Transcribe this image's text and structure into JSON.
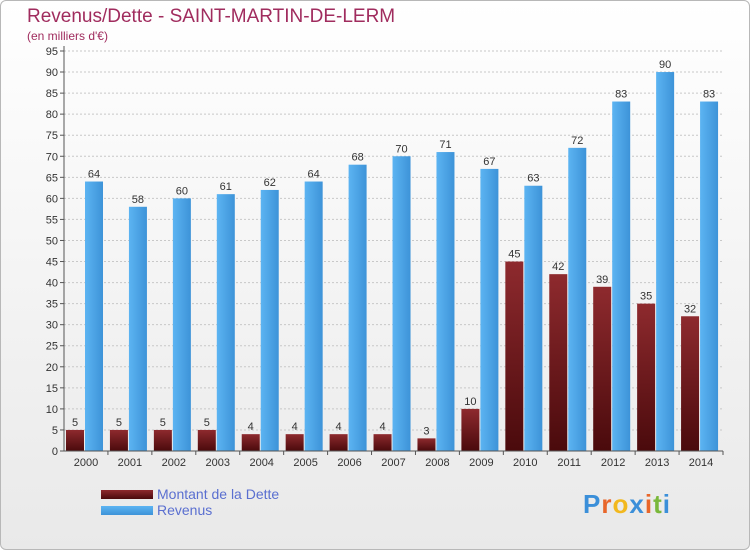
{
  "title": "Revenus/Dette - SAINT-MARTIN-DE-LERM",
  "subtitle": "(en milliers d'€)",
  "logo": "Proxiti",
  "colors": {
    "debt": "#7a1e22",
    "debt_dark": "#4a0a0c",
    "revenue": "#4ea8ec",
    "revenue_dark": "#2b7fc4",
    "grid": "#c8c8c8",
    "title": "#a02c5e"
  },
  "legend": [
    {
      "label": "Montant de la Dette",
      "series": 0
    },
    {
      "label": "Revenus",
      "series": 1
    }
  ],
  "chart_data": {
    "type": "bar",
    "title": "Revenus/Dette - SAINT-MARTIN-DE-LERM",
    "subtitle": "(en milliers d'€)",
    "categories": [
      "2000",
      "2001",
      "2002",
      "2003",
      "2004",
      "2005",
      "2006",
      "2007",
      "2008",
      "2009",
      "2010",
      "2011",
      "2012",
      "2013",
      "2014"
    ],
    "series": [
      {
        "name": "Montant de la Dette",
        "values": [
          5,
          5,
          5,
          5,
          4,
          4,
          4,
          4,
          3,
          10,
          45,
          42,
          39,
          35,
          32
        ]
      },
      {
        "name": "Revenus",
        "values": [
          64,
          58,
          60,
          61,
          62,
          64,
          68,
          70,
          71,
          67,
          63,
          72,
          83,
          90,
          83
        ]
      }
    ],
    "yticks": [
      0,
      5,
      10,
      15,
      20,
      25,
      30,
      35,
      40,
      45,
      50,
      55,
      60,
      65,
      70,
      75,
      80,
      85,
      90,
      95
    ],
    "ylim": [
      0,
      95
    ],
    "grid": true,
    "legend_position": "bottom-left"
  }
}
